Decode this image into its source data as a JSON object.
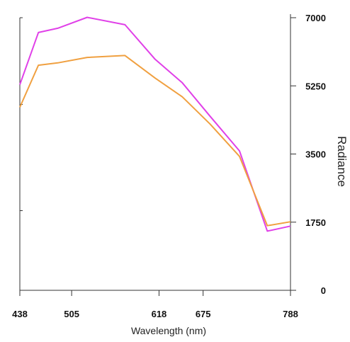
{
  "chart_data": {
    "type": "line",
    "title": "",
    "xlabel": "Wavelength (nm)",
    "ylabel": "Radiance",
    "xlim": [
      438,
      788
    ],
    "ylim": [
      0,
      7000
    ],
    "x_ticks": [
      "438",
      "505",
      "618",
      "675",
      "788"
    ],
    "y_ticks": [
      "0",
      "1750",
      "3500",
      "5250",
      "7000"
    ],
    "y_axis_side": "right",
    "grid": false,
    "legend": "none",
    "series": [
      {
        "color": "#e040e8",
        "x": [
          438,
          462,
          487,
          525,
          574,
          613,
          648,
          684,
          722,
          758,
          788
        ],
        "y": [
          5280,
          6620,
          6730,
          7010,
          6820,
          5930,
          5330,
          4470,
          3580,
          1520,
          1650
        ]
      },
      {
        "color": "#f0a040",
        "x": [
          438,
          462,
          487,
          525,
          574,
          613,
          648,
          684,
          722,
          758,
          788
        ],
        "y": [
          4700,
          5780,
          5840,
          5980,
          6030,
          5450,
          4970,
          4270,
          3440,
          1660,
          1760
        ]
      }
    ]
  }
}
